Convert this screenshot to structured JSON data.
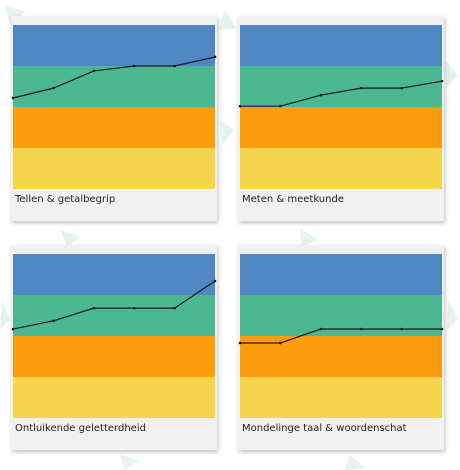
{
  "chart_data": [
    {
      "type": "line",
      "title": "Tellen & getalbegrip",
      "categories": [
        null,
        null,
        null,
        null,
        null,
        null
      ],
      "values": [
        2.22,
        2.46,
        2.88,
        3.0,
        3.0,
        3.22
      ],
      "color": "#1a1a1a",
      "ylim": [
        0,
        4
      ]
    },
    {
      "type": "line",
      "title": "Meten & meetkunde",
      "categories": [
        null,
        null,
        null,
        null,
        null,
        null
      ],
      "values": [
        2.02,
        2.02,
        2.29,
        2.46,
        2.46,
        2.63
      ],
      "color": "#1a1a1a",
      "ylim": [
        0,
        4
      ]
    },
    {
      "type": "line",
      "title": "Ontluikende geletterdheid",
      "categories": [
        null,
        null,
        null,
        null,
        null,
        null
      ],
      "values": [
        2.17,
        2.37,
        2.68,
        2.68,
        2.68,
        3.34
      ],
      "color": "#1a1a1a",
      "ylim": [
        0,
        4
      ]
    },
    {
      "type": "line",
      "title": "Mondelinge taal & woordenschat",
      "categories": [
        null,
        null,
        null,
        null,
        null,
        null
      ],
      "values": [
        1.83,
        1.83,
        2.17,
        2.17,
        2.17,
        2.17
      ],
      "color": "#1a1a1a",
      "ylim": [
        0,
        4
      ]
    }
  ]
}
